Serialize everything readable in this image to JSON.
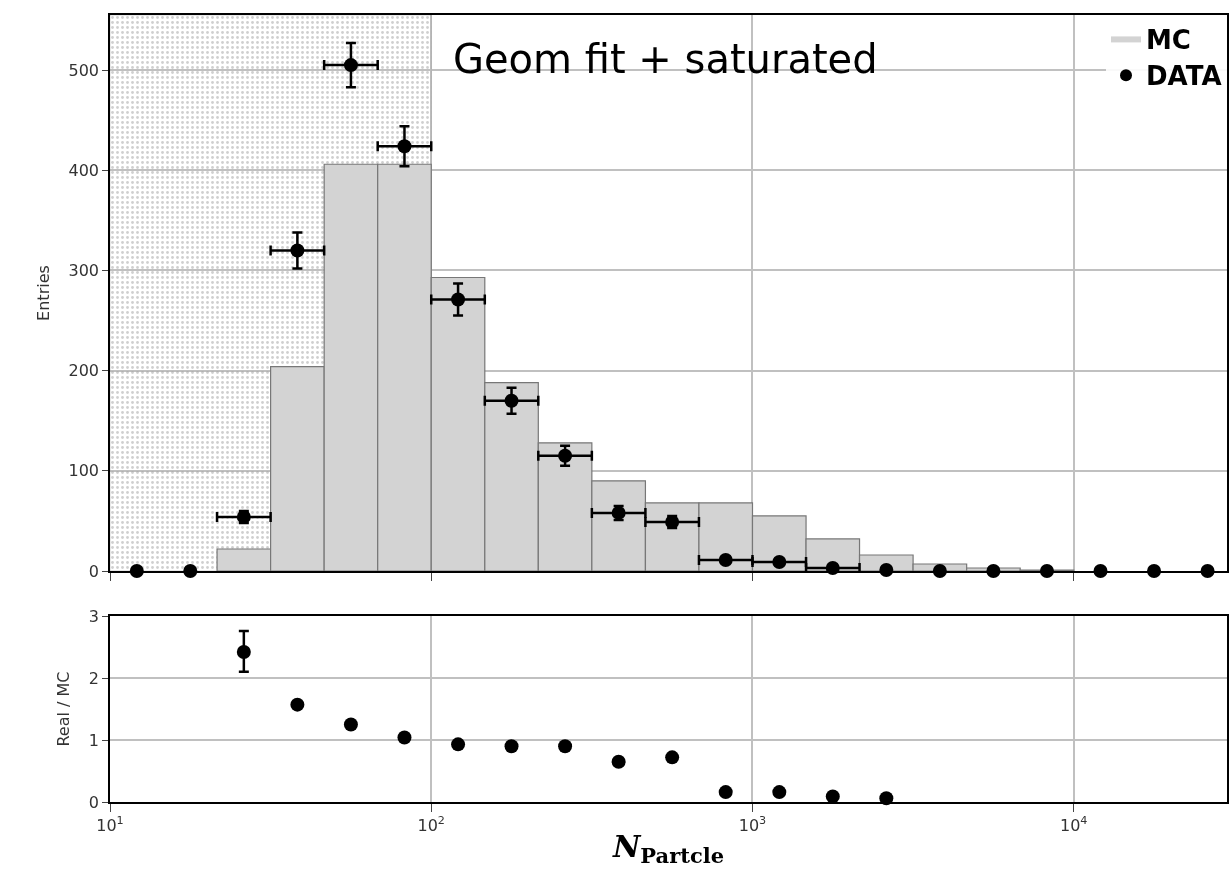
{
  "chart_data": [
    {
      "type": "histogram",
      "ylabel": "Entries",
      "annotations": [
        "Geom fit + saturated"
      ],
      "log": "x",
      "grid": true,
      "legend": "top right",
      "tick_labels": "y",
      "xlim": [
        10,
        30000
      ],
      "xticks": [
        {
          "value": 10,
          "label": null
        },
        {
          "value": 100,
          "label": null
        },
        {
          "value": 1000,
          "label": null
        },
        {
          "value": 10000,
          "label": null
        }
      ],
      "ylim": [
        0,
        555
      ],
      "yticks": [
        0,
        100,
        200,
        300,
        400,
        500
      ],
      "bins": [
        10,
        14.68,
        21.54,
        31.62,
        46.42,
        68.13,
        100,
        146.8,
        215.4,
        316.2,
        464.2,
        681.3,
        1000,
        1468,
        2154,
        3162,
        4642,
        6813,
        10000,
        14678,
        21544,
        31623
      ],
      "bands": [
        {
          "axis": "x",
          "from": 10,
          "to": 100,
          "color": "#a0a0a0"
        }
      ],
      "series": [
        {
          "name": "MC",
          "type": "histogram",
          "color": "#d3d3d3",
          "values": [
            0,
            0,
            22,
            204,
            406,
            406,
            293,
            188,
            128,
            90,
            68,
            68,
            55,
            32,
            16,
            7,
            3,
            1,
            0,
            0,
            0
          ]
        },
        {
          "name": "DATA",
          "type": "scatter",
          "color": "#000000",
          "marker": "circle",
          "x": [
            12.12,
            17.78,
            26.1,
            38.31,
            56.23,
            82.54,
            121.2,
            177.8,
            261.0,
            383.1,
            562.3,
            825.4,
            1212,
            1778,
            2610,
            3831,
            5623,
            8254,
            12115,
            17783,
            26102
          ],
          "values": [
            0,
            0,
            54,
            320,
            505,
            424,
            271,
            170,
            115,
            58,
            49,
            11,
            9,
            3,
            1,
            0,
            0,
            0,
            0,
            0,
            0
          ],
          "errors": [
            null,
            null,
            6,
            18,
            22,
            20,
            16,
            13,
            10,
            7,
            6,
            3,
            3,
            null,
            null,
            null,
            null,
            null,
            null,
            null,
            null
          ],
          "xerrors": [
            null,
            null,
            [
              21.54,
              31.62
            ],
            [
              31.62,
              46.42
            ],
            [
              46.42,
              68.13
            ],
            [
              68.13,
              100
            ],
            [
              100,
              146.8
            ],
            [
              146.8,
              215.4
            ],
            [
              215.4,
              316.2
            ],
            [
              316.2,
              464.2
            ],
            [
              464.2,
              681.3
            ],
            [
              681.3,
              1000
            ],
            [
              1000,
              1468
            ],
            [
              1468,
              2154
            ],
            null,
            null,
            null,
            null,
            null,
            null,
            null
          ]
        }
      ]
    },
    {
      "type": "scatter",
      "ylabel": "Real / MC",
      "xlabel": "N$_{Partcle}$",
      "log": "x",
      "grid": true,
      "marker": "circle",
      "xlim": [
        10,
        30000
      ],
      "xticks": [
        {
          "value": 10,
          "label": "10$^{1}$"
        },
        {
          "value": 100,
          "label": "10$^{2}$"
        },
        {
          "value": 1000,
          "label": "10$^{3}$"
        },
        {
          "value": 10000,
          "label": "10$^{4}$"
        }
      ],
      "ylim": [
        0,
        3
      ],
      "yticks": [
        0,
        1,
        2,
        3
      ],
      "series": [
        {
          "color": "#000000",
          "x": [
            26.1,
            38.31,
            56.23,
            82.54,
            121.2,
            177.8,
            261.0,
            383.1,
            562.3,
            825.4,
            1212,
            1778,
            2610
          ],
          "values": [
            2.42,
            1.57,
            1.25,
            1.04,
            0.93,
            0.9,
            0.9,
            0.65,
            0.72,
            0.16,
            0.16,
            0.09,
            0.06
          ],
          "errors": [
            [
              2.1,
              2.76
            ],
            null,
            null,
            null,
            null,
            null,
            null,
            null,
            null,
            null,
            null,
            null,
            null
          ]
        }
      ]
    }
  ]
}
